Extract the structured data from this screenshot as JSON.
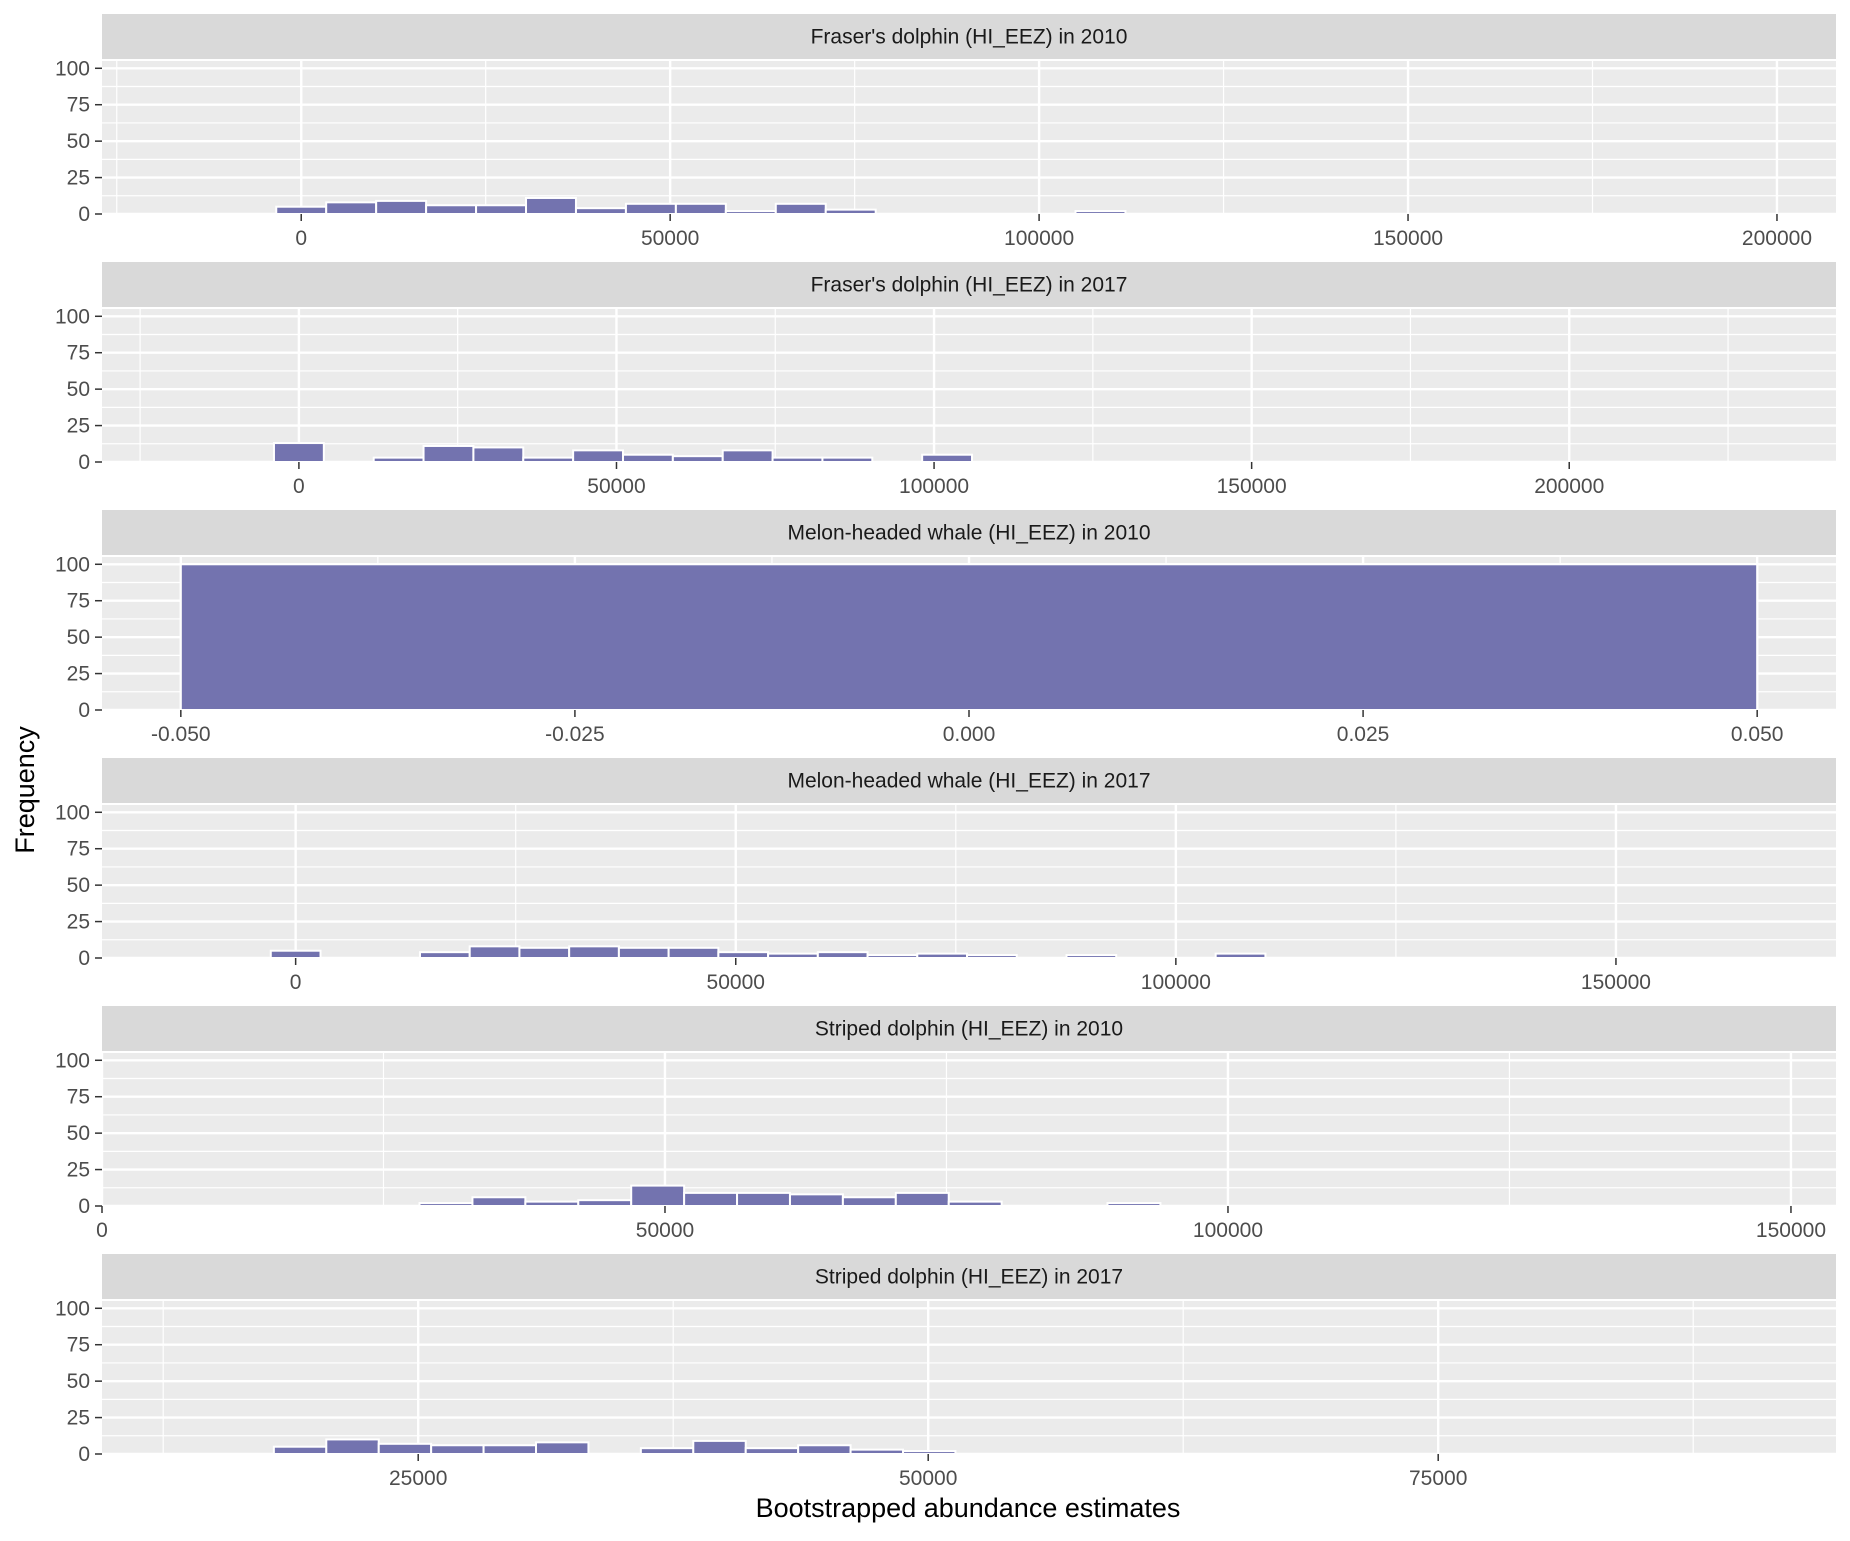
{
  "colors": {
    "panel_background": "#ebebeb",
    "strip_background": "#d9d9d9",
    "grid_line": "#ffffff",
    "bar_fill": "#7070ad",
    "bar_outline": "#ffffff",
    "tick_text": "#4d4d4d"
  },
  "chart_data": {
    "type": "bar",
    "subtype": "histogram (faceted)",
    "layout": "6 facets stacked vertically, free x scales, shared y scale",
    "xlabel": "Bootstrapped abundance estimates",
    "ylabel": "Frequency",
    "grid": true,
    "legend": "none",
    "ylim": [
      0,
      105
    ],
    "y_ticks": [
      0,
      25,
      50,
      75,
      100
    ],
    "panels": [
      {
        "title": "Fraser's dolphin (HI_EEZ) in 2010",
        "xlim": [
          -27000,
          208000
        ],
        "x_ticks": [
          0,
          50000,
          100000,
          150000,
          200000
        ],
        "x_tick_labels": [
          "0",
          "50000",
          "100000",
          "150000",
          "200000"
        ],
        "bin_width": 6770,
        "bins_start": 0,
        "bin_counts": [
          5,
          8,
          9,
          6,
          6,
          11,
          4,
          7,
          7,
          2,
          7,
          3,
          0,
          0,
          0,
          0,
          2,
          0,
          0,
          0,
          0,
          0,
          0,
          0,
          0,
          0,
          0,
          0,
          0,
          0
        ]
      },
      {
        "title": "Fraser's dolphin (HI_EEZ) in 2017",
        "xlim": [
          -31000,
          242000
        ],
        "x_ticks": [
          0,
          50000,
          100000,
          150000,
          200000
        ],
        "x_tick_labels": [
          "0",
          "50000",
          "100000",
          "150000",
          "200000"
        ],
        "bin_width": 7850,
        "bins_start": 0,
        "bin_counts": [
          13,
          0,
          3,
          11,
          10,
          3,
          8,
          5,
          4,
          8,
          3,
          3,
          0,
          5,
          0,
          0,
          0,
          0,
          0,
          0,
          0,
          0,
          0,
          0,
          0,
          0,
          0,
          0,
          0,
          0
        ]
      },
      {
        "title": "Melon-headed whale (HI_EEZ) in 2010",
        "xlim": [
          -0.055,
          0.055
        ],
        "x_ticks": [
          -0.05,
          -0.025,
          0,
          0.025,
          0.05
        ],
        "x_tick_labels": [
          "-0.050",
          "-0.025",
          "0.000",
          "0.025",
          "0.050"
        ],
        "bins": [
          {
            "x0": -0.05,
            "x1": 0.05,
            "count": 100
          }
        ]
      },
      {
        "title": "Melon-headed whale (HI_EEZ) in 2017",
        "xlim": [
          -22000,
          175000
        ],
        "x_ticks": [
          0,
          50000,
          100000,
          150000
        ],
        "x_tick_labels": [
          "0",
          "50000",
          "100000",
          "150000"
        ],
        "bin_width": 5650,
        "bins_start": 0,
        "bin_counts": [
          5,
          0,
          0,
          4,
          8,
          7,
          8,
          7,
          7,
          4,
          3,
          4,
          2,
          3,
          2,
          0,
          2,
          0,
          0,
          3,
          0,
          0,
          0,
          0,
          0,
          0,
          0,
          0,
          0,
          0
        ]
      },
      {
        "title": "Striped dolphin (HI_EEZ) in 2010",
        "xlim": [
          0,
          154000
        ],
        "x_ticks": [
          0,
          50000,
          100000,
          150000
        ],
        "x_tick_labels": [
          "0",
          "50000",
          "100000",
          "150000"
        ],
        "bin_width": 4700,
        "bins_start": 7050,
        "bin_counts": [
          0,
          0,
          0,
          0,
          0,
          2,
          6,
          3,
          4,
          14,
          9,
          9,
          8,
          6,
          9,
          3,
          0,
          0,
          2,
          0,
          0,
          0,
          0,
          0,
          0,
          0,
          0,
          0,
          0,
          0
        ]
      },
      {
        "title": "Striped dolphin (HI_EEZ) in 2017",
        "xlim": [
          9500,
          94500
        ],
        "x_ticks": [
          25000,
          50000,
          75000
        ],
        "x_tick_labels": [
          "25000",
          "50000",
          "75000"
        ],
        "bin_width": 2570,
        "bins_start": 11500,
        "bin_counts": [
          0,
          0,
          0,
          5,
          10,
          7,
          6,
          6,
          8,
          0,
          4,
          9,
          4,
          6,
          3,
          2,
          0,
          0,
          0,
          0,
          0,
          0,
          0,
          0,
          0,
          0,
          0,
          0,
          0,
          0
        ]
      }
    ]
  }
}
